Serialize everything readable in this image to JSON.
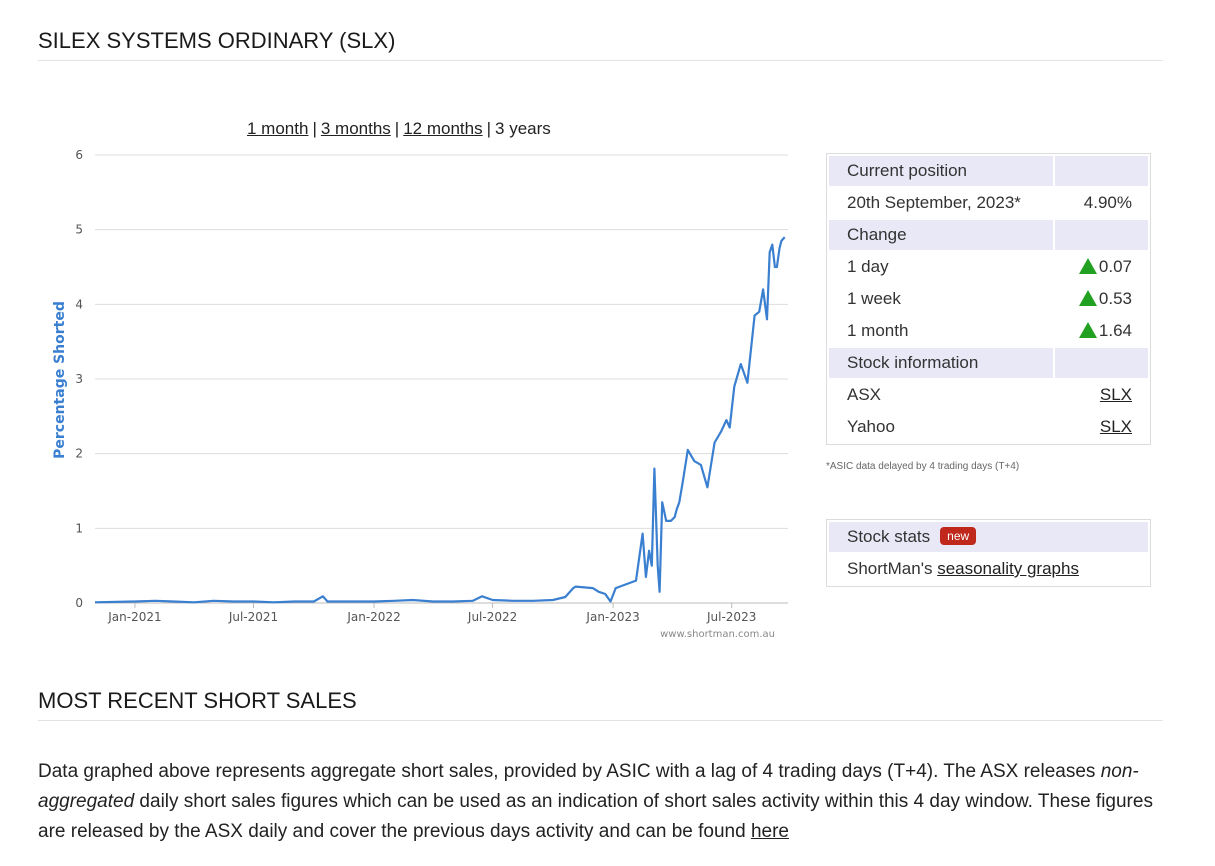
{
  "page_title": "SILEX SYSTEMS ORDINARY (SLX)",
  "range_links": [
    {
      "label": "1 month",
      "active": false
    },
    {
      "label": "3 months",
      "active": false
    },
    {
      "label": "12 months",
      "active": false
    },
    {
      "label": "3 years",
      "active": true
    }
  ],
  "chart_data": {
    "type": "line",
    "ylabel": "Percentage Shorted",
    "xlabel": "",
    "title": "",
    "ylim": [
      0,
      6
    ],
    "yticks": [
      0,
      1,
      2,
      3,
      4,
      5,
      6
    ],
    "xlim": [
      "2020-11-01",
      "2023-09-25"
    ],
    "xticks": [
      {
        "label": "Jan-2021",
        "date": "2021-01-01"
      },
      {
        "label": "Jul-2021",
        "date": "2021-07-01"
      },
      {
        "label": "Jan-2022",
        "date": "2022-01-01"
      },
      {
        "label": "Jul-2022",
        "date": "2022-07-01"
      },
      {
        "label": "Jan-2023",
        "date": "2023-01-01"
      },
      {
        "label": "Jul-2023",
        "date": "2023-07-01"
      }
    ],
    "grid": true,
    "watermark": "www.shortman.com.au",
    "series_color": "#3a7fd0",
    "series": [
      {
        "x": [
          "2020-11-01",
          "2021-01-01",
          "2021-02-01",
          "2021-03-01",
          "2021-04-01",
          "2021-05-01",
          "2021-06-01",
          "2021-07-01",
          "2021-08-01",
          "2021-09-01",
          "2021-10-01",
          "2021-10-15",
          "2021-10-22",
          "2021-11-01",
          "2022-01-01",
          "2022-02-01",
          "2022-03-01",
          "2022-04-01",
          "2022-05-01",
          "2022-06-01",
          "2022-06-15",
          "2022-07-01",
          "2022-08-01",
          "2022-09-01",
          "2022-10-01",
          "2022-10-20",
          "2022-11-01",
          "2022-11-05",
          "2022-12-01",
          "2022-12-10",
          "2022-12-20",
          "2022-12-28",
          "2023-01-05",
          "2023-02-05",
          "2023-02-15",
          "2023-02-20",
          "2023-02-25",
          "2023-03-01",
          "2023-03-05",
          "2023-03-10",
          "2023-03-13",
          "2023-03-17",
          "2023-03-23",
          "2023-03-30",
          "2023-04-05",
          "2023-04-08",
          "2023-04-12",
          "2023-04-17",
          "2023-04-25",
          "2023-05-05",
          "2023-05-15",
          "2023-05-25",
          "2023-06-05",
          "2023-06-15",
          "2023-06-23",
          "2023-06-28",
          "2023-07-05",
          "2023-07-15",
          "2023-07-25",
          "2023-08-05",
          "2023-08-12",
          "2023-08-18",
          "2023-08-24",
          "2023-08-28",
          "2023-09-01",
          "2023-09-05",
          "2023-09-08",
          "2023-09-12",
          "2023-09-15",
          "2023-09-20"
        ],
        "y": [
          0.01,
          0.02,
          0.03,
          0.02,
          0.01,
          0.03,
          0.02,
          0.02,
          0.01,
          0.02,
          0.02,
          0.09,
          0.02,
          0.02,
          0.02,
          0.03,
          0.04,
          0.02,
          0.02,
          0.03,
          0.09,
          0.04,
          0.03,
          0.03,
          0.04,
          0.08,
          0.2,
          0.22,
          0.2,
          0.15,
          0.12,
          0.02,
          0.2,
          0.3,
          0.93,
          0.35,
          0.7,
          0.5,
          1.8,
          0.5,
          0.15,
          1.35,
          1.1,
          1.1,
          1.15,
          1.25,
          1.35,
          1.6,
          2.05,
          1.9,
          1.85,
          1.55,
          2.15,
          2.3,
          2.45,
          2.35,
          2.9,
          3.2,
          2.95,
          3.85,
          3.9,
          4.2,
          3.8,
          4.7,
          4.8,
          4.5,
          4.5,
          4.75,
          4.85,
          4.9
        ]
      }
    ]
  },
  "current_position": {
    "header": "Current position",
    "date_label": "20th September, 2023*",
    "value": "4.90%"
  },
  "change": {
    "header": "Change",
    "rows": [
      {
        "label": "1 day",
        "value": "0.07"
      },
      {
        "label": "1 week",
        "value": "0.53"
      },
      {
        "label": "1 month",
        "value": "1.64"
      }
    ]
  },
  "stock_info": {
    "header": "Stock information",
    "rows": [
      {
        "label": "ASX",
        "link": "SLX"
      },
      {
        "label": "Yahoo",
        "link": "SLX"
      }
    ]
  },
  "footnote": "*ASIC data delayed by 4 trading days (T+4)",
  "stock_stats": {
    "header": "Stock stats",
    "badge": "new",
    "text_prefix": "ShortMan's",
    "link": "seasonality graphs"
  },
  "recent_title": "MOST RECENT SHORT SALES",
  "body": {
    "part1": "Data graphed above represents aggregate short sales, provided by ASIC with a lag of 4 trading days (T+4). The ASX releases ",
    "emphasis": "non-aggregated",
    "part2": " daily short sales figures which can be used as an indication of short sales activity within this 4 day window. These figures are released by the ASX daily and cover the previous days activity and can be found ",
    "link": "here"
  }
}
